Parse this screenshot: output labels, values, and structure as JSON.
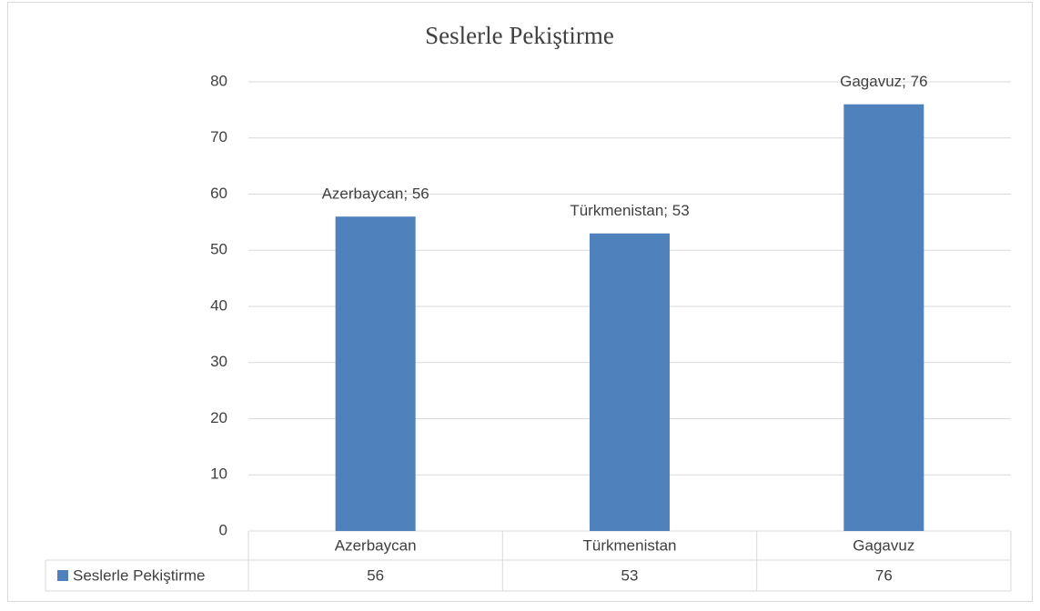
{
  "chart_data": {
    "type": "bar",
    "title": "Seslerle Pekiştirme",
    "categories": [
      "Azerbaycan",
      "Türkmenistan",
      "Gagavuz"
    ],
    "series": [
      {
        "name": "Seslerle Pekiştirme",
        "color": "#4f81bd",
        "values": [
          56,
          53,
          76
        ]
      }
    ],
    "value_labels": [
      "Azerbaycan; 56",
      "Türkmenistan; 53",
      "Gagavuz; 76"
    ],
    "ylim": [
      0,
      80
    ],
    "yticks": [
      0,
      10,
      20,
      30,
      40,
      50,
      60,
      70,
      80
    ],
    "grid": true
  }
}
